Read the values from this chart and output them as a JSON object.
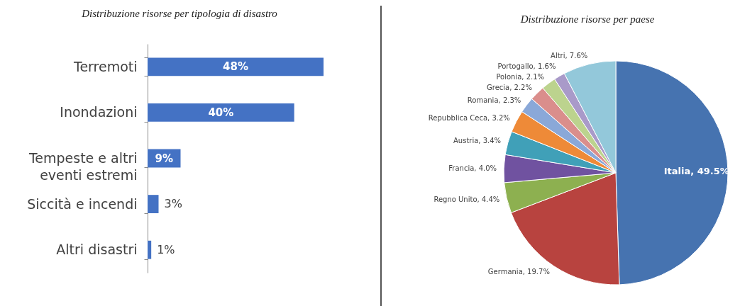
{
  "chart_data": [
    {
      "type": "bar",
      "orientation": "horizontal",
      "title": "Distribuzione risorse per tipologia di disastro",
      "categories": [
        "Terremoti",
        "Inondazioni",
        "Tempeste e altri eventi estremi",
        "Siccità e incendi",
        "Altri disastri"
      ],
      "values": [
        48,
        40,
        9,
        3,
        1
      ],
      "value_labels": [
        "48%",
        "40%",
        "9%",
        "3%",
        "1%"
      ],
      "color": "#4472c4"
    },
    {
      "type": "pie",
      "title": "Distribuzione risorse per paese",
      "categories": [
        "Italia",
        "Germania",
        "Regno Unito",
        "Francia",
        "Austria",
        "Repubblica Ceca",
        "Romania",
        "Grecia",
        "Polonia",
        "Portogallo",
        "Altri"
      ],
      "values": [
        49.5,
        19.7,
        4.4,
        4.0,
        3.4,
        3.2,
        2.3,
        2.2,
        2.1,
        1.6,
        7.6
      ],
      "value_labels": [
        "49.5%",
        "19.7%",
        "4.4%",
        "4.0%",
        "3.4%",
        "3.2%",
        "2.3%",
        "2.2%",
        "2.1%",
        "1.6%",
        "7.6%"
      ],
      "colors": [
        "#4673b0",
        "#b8433f",
        "#8db050",
        "#7052a0",
        "#40a0b8",
        "#ee8a38",
        "#8aa8d8",
        "#da8e8c",
        "#bcd38e",
        "#a99ac9",
        "#93c8da"
      ]
    }
  ]
}
